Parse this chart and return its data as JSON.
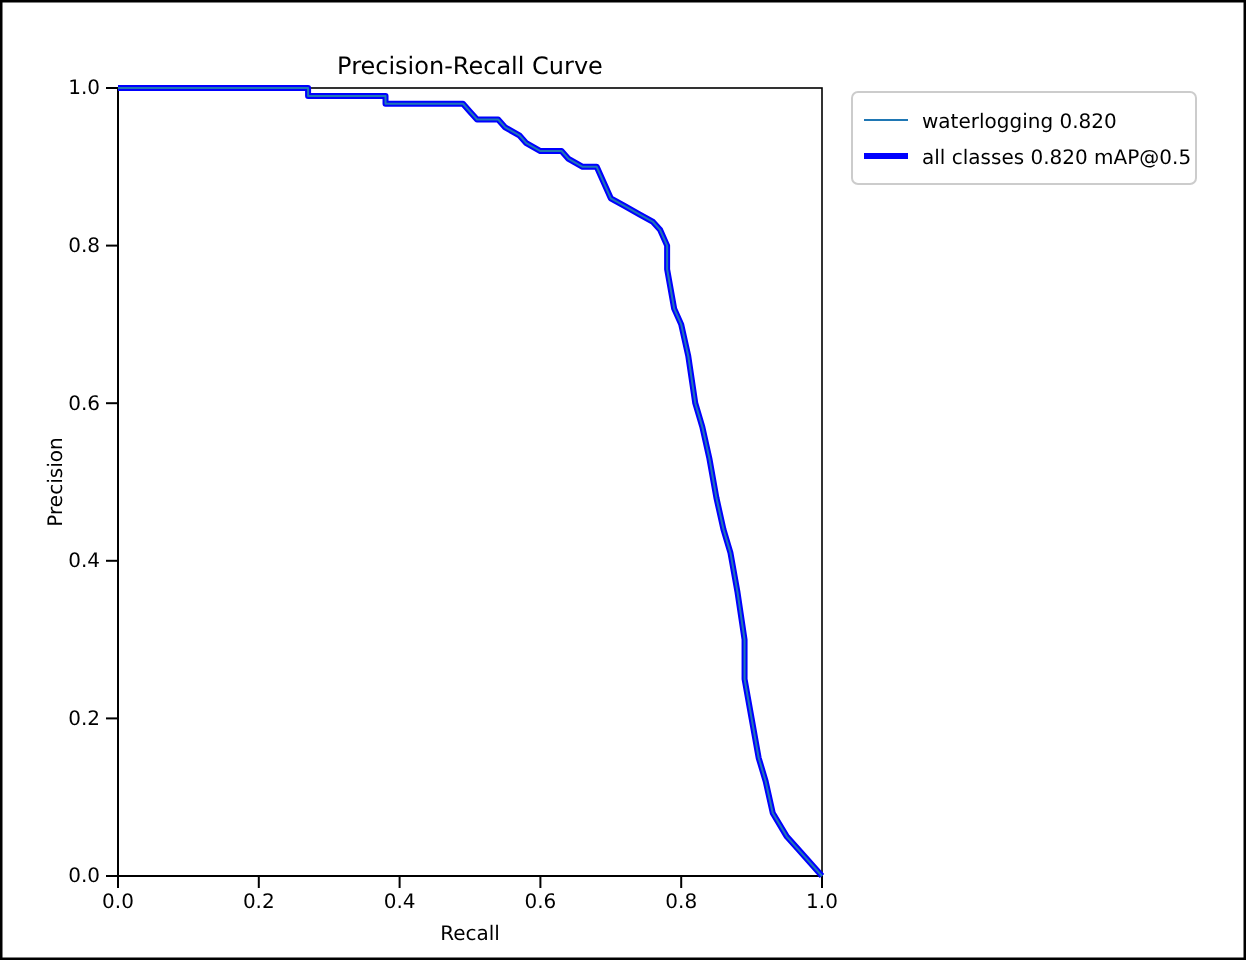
{
  "chart_data": {
    "type": "line",
    "title": "Precision-Recall Curve",
    "xlabel": "Recall",
    "ylabel": "Precision",
    "xlim": [
      0,
      1
    ],
    "ylim": [
      0,
      1
    ],
    "xticks": [
      {
        "value": 0,
        "label": "0.0"
      },
      {
        "value": 0.2,
        "label": "0.2"
      },
      {
        "value": 0.4,
        "label": "0.4"
      },
      {
        "value": 0.6,
        "label": "0.6"
      },
      {
        "value": 0.8,
        "label": "0.8"
      },
      {
        "value": 1,
        "label": "1.0"
      }
    ],
    "yticks": [
      {
        "value": 0,
        "label": "0.0"
      },
      {
        "value": 0.2,
        "label": "0.2"
      },
      {
        "value": 0.4,
        "label": "0.4"
      },
      {
        "value": 0.6,
        "label": "0.6"
      },
      {
        "value": 0.8,
        "label": "0.8"
      },
      {
        "value": 1,
        "label": "1.0"
      }
    ],
    "x": [
      0,
      0.27,
      0.27,
      0.38,
      0.38,
      0.49,
      0.5,
      0.51,
      0.54,
      0.55,
      0.57,
      0.58,
      0.6,
      0.63,
      0.64,
      0.66,
      0.68,
      0.69,
      0.7,
      0.72,
      0.74,
      0.76,
      0.77,
      0.78,
      0.78,
      0.79,
      0.8,
      0.81,
      0.82,
      0.83,
      0.84,
      0.85,
      0.86,
      0.87,
      0.88,
      0.89,
      0.89,
      0.9,
      0.91,
      0.92,
      0.93,
      0.95,
      0.97,
      1
    ],
    "series": [
      {
        "name": "waterlogging 0.820",
        "color": "#1f77b4",
        "values": [
          1,
          1,
          0.99,
          0.99,
          0.98,
          0.98,
          0.97,
          0.96,
          0.96,
          0.95,
          0.94,
          0.93,
          0.92,
          0.92,
          0.91,
          0.9,
          0.9,
          0.88,
          0.86,
          0.85,
          0.84,
          0.83,
          0.82,
          0.8,
          0.77,
          0.72,
          0.7,
          0.66,
          0.6,
          0.57,
          0.53,
          0.48,
          0.44,
          0.41,
          0.36,
          0.3,
          0.25,
          0.2,
          0.15,
          0.12,
          0.08,
          0.05,
          0.03,
          0
        ]
      },
      {
        "name": "all classes 0.820 mAP@0.5",
        "color": "#0000ff",
        "values": [
          1,
          1,
          0.99,
          0.99,
          0.98,
          0.98,
          0.97,
          0.96,
          0.96,
          0.95,
          0.94,
          0.93,
          0.92,
          0.92,
          0.91,
          0.9,
          0.9,
          0.88,
          0.86,
          0.85,
          0.84,
          0.83,
          0.82,
          0.8,
          0.77,
          0.72,
          0.7,
          0.66,
          0.6,
          0.57,
          0.53,
          0.48,
          0.44,
          0.41,
          0.36,
          0.3,
          0.25,
          0.2,
          0.15,
          0.12,
          0.08,
          0.05,
          0.03,
          0
        ]
      }
    ],
    "legend": "top right",
    "grid": false,
    "line_style": "solid",
    "marker": "none"
  }
}
